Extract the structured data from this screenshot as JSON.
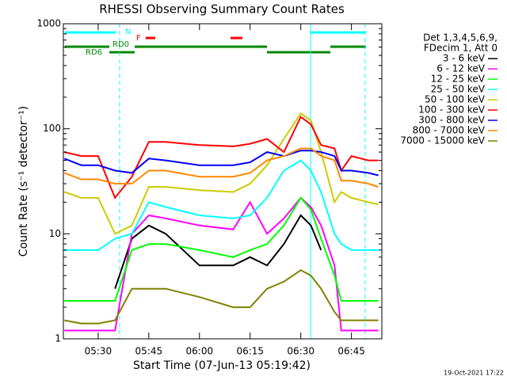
{
  "chart_data": {
    "type": "line",
    "title": "RHESSI Observing Summary Count Rates",
    "xlabel": "Start Time (07-Jun-13 05:19:42)",
    "ylabel": "Count Rate (s⁻¹ detector⁻¹)",
    "legend_header": [
      "Det 1,3,4,5,6,9,",
      "FDecim 1, Att 0"
    ],
    "annotations": [
      "N",
      "F",
      "RD0",
      "RD6"
    ],
    "timestamp": "19-Oct-2021 17:22",
    "log_y": true,
    "xlim": [
      "05:19:42",
      "06:54"
    ],
    "xticks": [
      "05:30",
      "05:45",
      "06:00",
      "06:15",
      "06:30",
      "06:45"
    ],
    "ylim": [
      1,
      1000
    ],
    "yticks": [
      1,
      10,
      100,
      1000
    ],
    "x": [
      "05:20",
      "05:25",
      "05:30",
      "05:35",
      "05:40",
      "05:45",
      "05:50",
      "06:00",
      "06:10",
      "06:15",
      "06:20",
      "06:25",
      "06:30",
      "06:33",
      "06:36",
      "06:40",
      "06:42",
      "06:45",
      "06:50",
      "06:53"
    ],
    "series": [
      {
        "name": "3 - 6 keV",
        "color": "#000000",
        "values": [
          null,
          null,
          null,
          3,
          9,
          12,
          10,
          5,
          5,
          6,
          5,
          8,
          15,
          12,
          7,
          null,
          null,
          null,
          null,
          null
        ]
      },
      {
        "name": "6 - 12 keV",
        "color": "#ff00ff",
        "values": [
          1.2,
          1.2,
          1.2,
          1.2,
          10,
          15,
          14,
          12,
          11,
          20,
          10,
          14,
          22,
          18,
          12,
          5,
          1.2,
          1.2,
          1.2,
          1.2
        ]
      },
      {
        "name": "12 - 25 keV",
        "color": "#00ff00",
        "values": [
          2.3,
          2.3,
          2.3,
          2.3,
          7,
          8,
          8,
          7,
          6,
          7,
          8,
          12,
          22,
          17,
          9,
          4,
          2.3,
          2.3,
          2.3,
          2.3
        ]
      },
      {
        "name": "25 - 50 keV",
        "color": "#00ffff",
        "values": [
          7,
          7,
          7,
          9,
          10,
          20,
          18,
          15,
          14,
          15,
          22,
          40,
          50,
          40,
          25,
          10,
          8,
          7,
          7,
          7
        ]
      },
      {
        "name": "50 - 100 keV",
        "color": "#cccc00",
        "values": [
          25,
          22,
          22,
          10,
          12,
          28,
          28,
          26,
          25,
          30,
          45,
          80,
          140,
          120,
          60,
          20,
          25,
          22,
          20,
          19
        ]
      },
      {
        "name": "100 - 300 keV",
        "color": "#ff0000",
        "values": [
          60,
          55,
          55,
          22,
          35,
          75,
          75,
          70,
          68,
          72,
          80,
          60,
          130,
          110,
          70,
          65,
          40,
          55,
          50,
          50
        ]
      },
      {
        "name": "300 - 800 keV",
        "color": "#0000ff",
        "values": [
          52,
          45,
          45,
          40,
          38,
          52,
          50,
          45,
          45,
          48,
          60,
          55,
          62,
          62,
          60,
          55,
          40,
          40,
          38,
          36
        ]
      },
      {
        "name": "800 - 7000 keV",
        "color": "#ff8800",
        "values": [
          38,
          33,
          33,
          30,
          30,
          40,
          40,
          35,
          35,
          38,
          50,
          55,
          65,
          65,
          55,
          50,
          32,
          32,
          30,
          28
        ]
      },
      {
        "name": "7000 - 15000 keV",
        "color": "#808000",
        "values": [
          1.5,
          1.4,
          1.4,
          1.5,
          3,
          3,
          3,
          2.5,
          2,
          2,
          3,
          3.5,
          4.5,
          4,
          3,
          1.8,
          1.5,
          1.5,
          1.5,
          1.5
        ]
      }
    ]
  }
}
